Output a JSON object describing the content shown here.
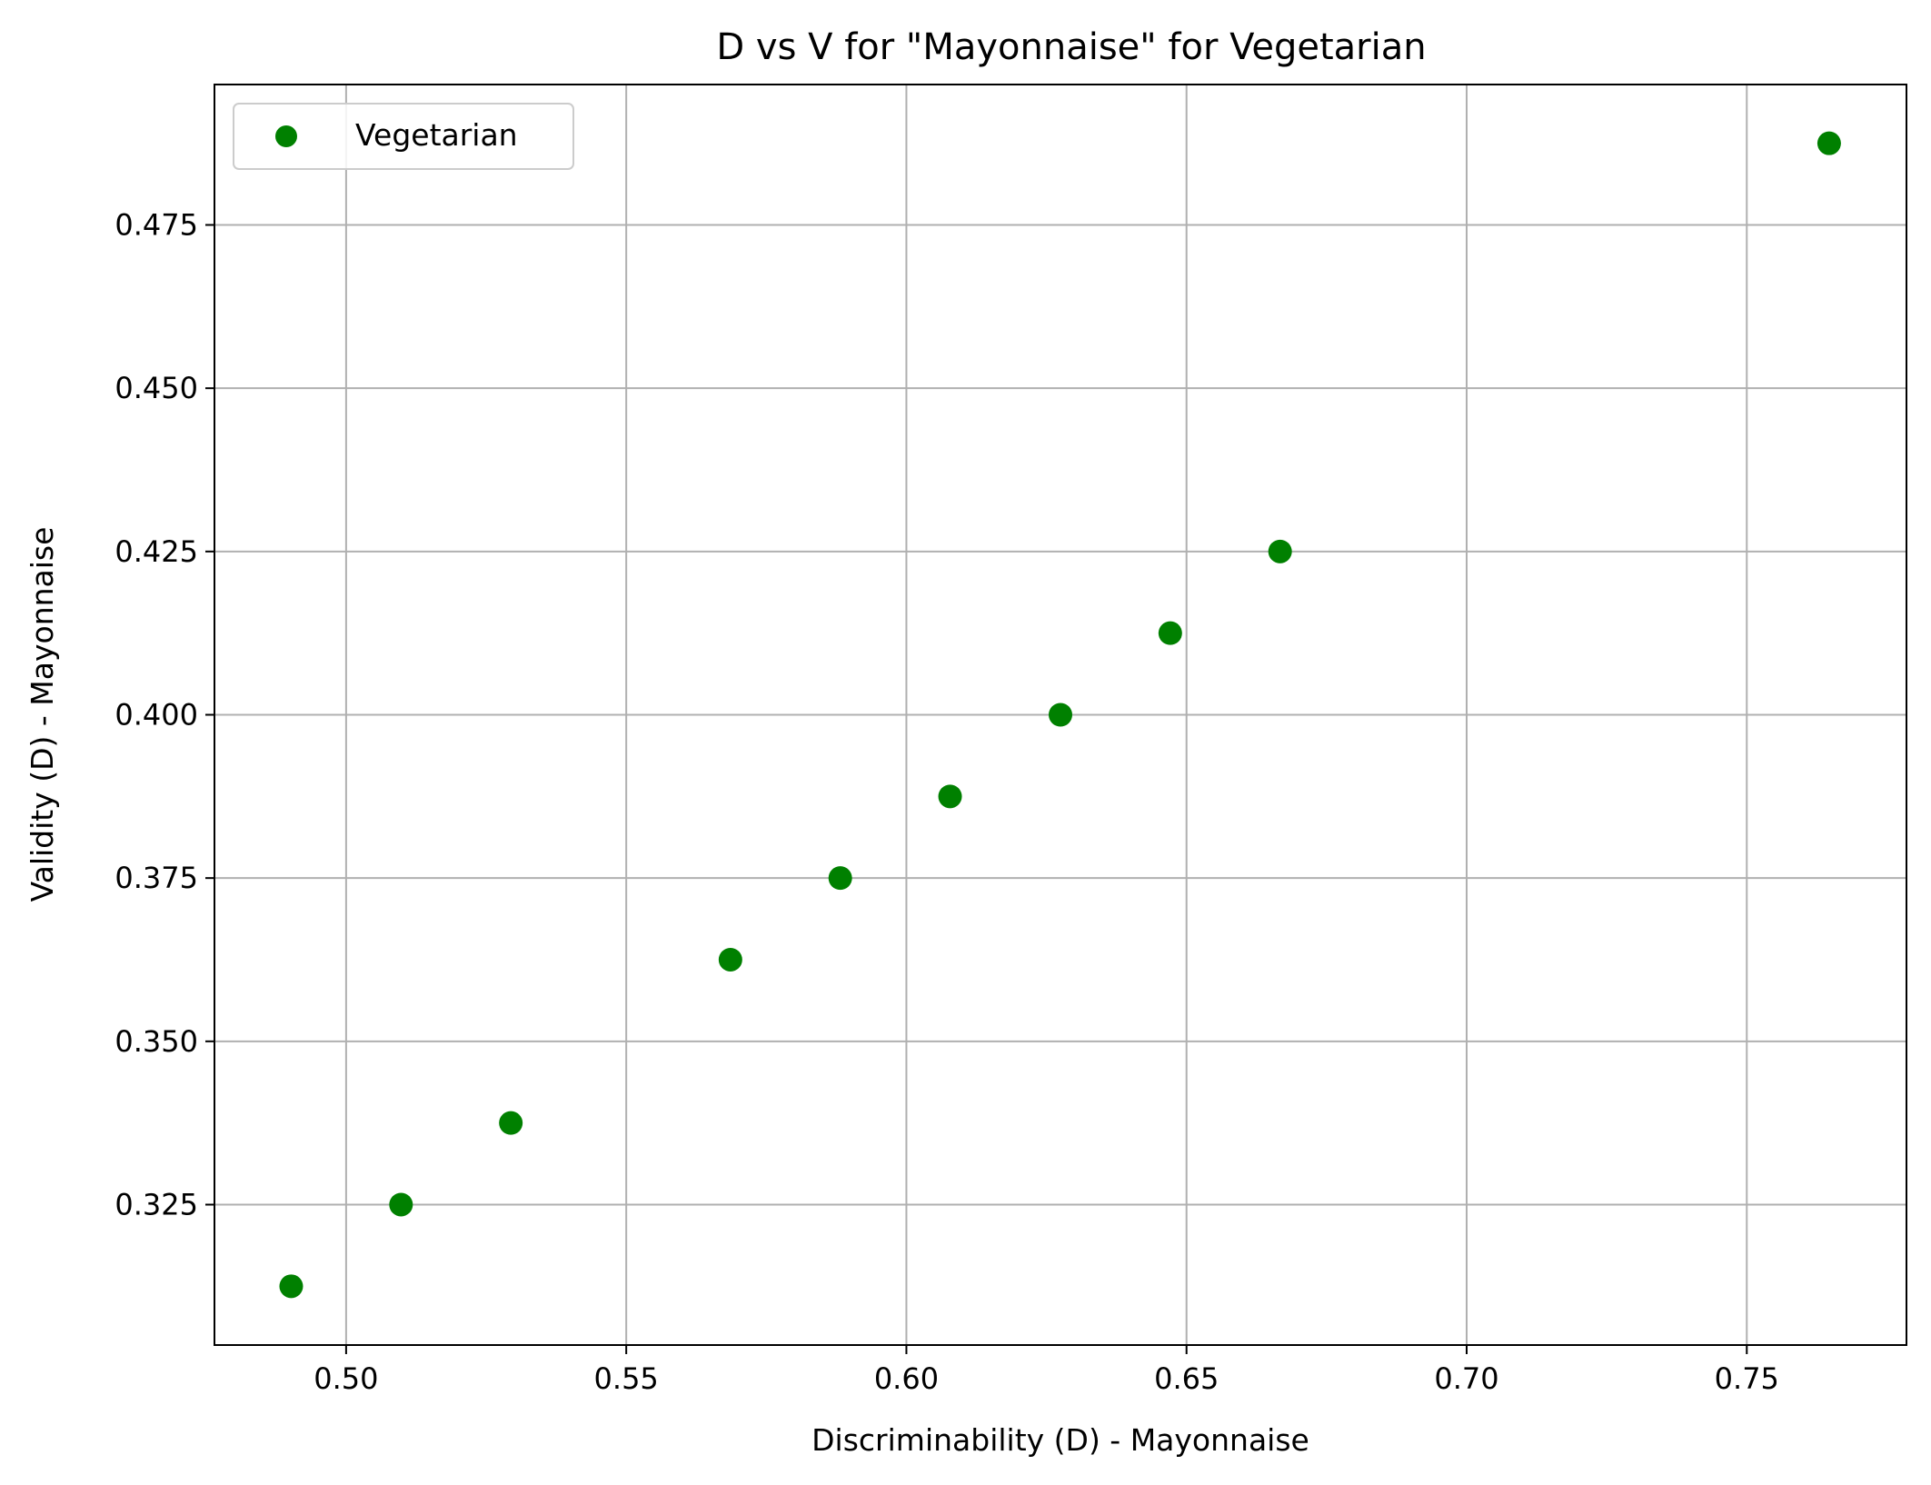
{
  "chart_data": {
    "type": "scatter",
    "title": "D vs V for \"Mayonnaise\" for Vegetarian",
    "xlabel": "Discriminability (D) - Mayonnaise",
    "ylabel": "Validity (D) - Mayonnaise",
    "xlim": [
      0.4765,
      0.7785
    ],
    "ylim": [
      0.3035,
      0.4965
    ],
    "xticks": [
      0.5,
      0.55,
      0.6,
      0.65,
      0.7,
      0.75
    ],
    "xtick_labels": [
      "0.50",
      "0.55",
      "0.60",
      "0.65",
      "0.70",
      "0.75"
    ],
    "yticks": [
      0.325,
      0.35,
      0.375,
      0.4,
      0.425,
      0.45,
      0.475
    ],
    "ytick_labels": [
      "0.325",
      "0.350",
      "0.375",
      "0.400",
      "0.425",
      "0.450",
      "0.475"
    ],
    "grid": true,
    "legend_position": "top-left",
    "series": [
      {
        "name": "Vegetarian",
        "color": "#008000",
        "x": [
          0.4902,
          0.5098,
          0.5294,
          0.5686,
          0.5882,
          0.6078,
          0.6275,
          0.6471,
          0.6667,
          0.7647
        ],
        "y": [
          0.3125,
          0.325,
          0.3375,
          0.3625,
          0.375,
          0.3875,
          0.4,
          0.4125,
          0.425,
          0.4875
        ]
      }
    ]
  }
}
